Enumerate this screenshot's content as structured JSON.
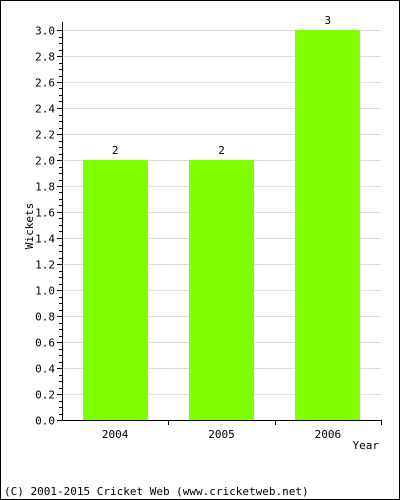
{
  "chart_data": {
    "type": "bar",
    "categories": [
      "2004",
      "2005",
      "2006"
    ],
    "values": [
      2,
      2,
      3
    ],
    "data_labels": [
      "2",
      "2",
      "3"
    ],
    "xlabel": "Year",
    "ylabel": "Wickets",
    "ylim": [
      0,
      3
    ],
    "yticks": [
      "0.0",
      "0.2",
      "0.4",
      "0.6",
      "0.8",
      "1.0",
      "1.2",
      "1.4",
      "1.6",
      "1.8",
      "2.0",
      "2.2",
      "2.4",
      "2.6",
      "2.8",
      "3.0"
    ],
    "grid": true,
    "bar_color": "#80ff00",
    "grid_color": "#dddddd"
  },
  "footer": {
    "copyright": "(C) 2001-2015 Cricket Web (www.cricketweb.net)"
  }
}
